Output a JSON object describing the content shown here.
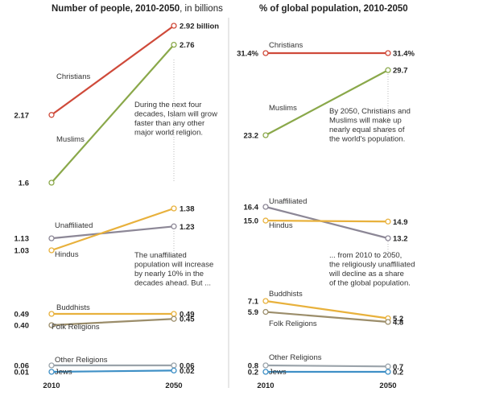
{
  "colors": {
    "Christians": "#cf4a3a",
    "Muslims": "#8aa84a",
    "Unaffiliated": "#8c8796",
    "Hindus": "#e8b13c",
    "Buddhists": "#e8b13c",
    "Folk Religions": "#9b8d6a",
    "Other Religions": "#9aa3aa",
    "Jews": "#3f90c6",
    "divider": "#cfcfcf",
    "axis": "#333333",
    "gridlink": "#bbbbbb"
  },
  "chart_data": [
    {
      "type": "line",
      "title_bold": "Number of people, 2010-2050",
      "title_rest": ", in billions",
      "x": [
        2010,
        2050
      ],
      "x_tick_labels": [
        "2010",
        "2050"
      ],
      "groups": [
        {
          "series": [
            {
              "name": "Christians",
              "values": [
                2.17,
                2.92
              ],
              "start_label": "2.17",
              "end_label": "2.92 billion"
            },
            {
              "name": "Muslims",
              "values": [
                1.6,
                2.76
              ],
              "start_label": "1.6",
              "end_label": "2.76"
            }
          ],
          "annotation": [
            "During the next four",
            "decades, Islam will grow",
            "faster than any other",
            "major world religion."
          ]
        },
        {
          "series": [
            {
              "name": "Unaffiliated",
              "values": [
                1.13,
                1.23
              ],
              "start_label": "1.13",
              "end_label": "1.23"
            },
            {
              "name": "Hindus",
              "values": [
                1.03,
                1.38
              ],
              "start_label": "1.03",
              "end_label": "1.38"
            }
          ],
          "annotation": [
            "The unaffiliated",
            "population will increase",
            "by nearly 10% in the",
            "decades ahead. But ..."
          ]
        },
        {
          "series": [
            {
              "name": "Buddhists",
              "values": [
                0.49,
                0.49
              ],
              "start_label": "0.49",
              "end_label": "0.49"
            },
            {
              "name": "Folk Religions",
              "values": [
                0.4,
                0.45
              ],
              "start_label": "0.40",
              "end_label": "0.45"
            }
          ]
        },
        {
          "series": [
            {
              "name": "Other Religions",
              "values": [
                0.06,
                0.06
              ],
              "start_label": "0.06",
              "end_label": "0.06"
            },
            {
              "name": "Jews",
              "values": [
                0.01,
                0.02
              ],
              "start_label": "0.01",
              "end_label": "0.02"
            }
          ]
        }
      ]
    },
    {
      "type": "line",
      "title_bold": "% of global population, 2010-2050",
      "title_rest": "",
      "x": [
        2010,
        2050
      ],
      "x_tick_labels": [
        "2010",
        "2050"
      ],
      "groups": [
        {
          "series": [
            {
              "name": "Christians",
              "values": [
                31.4,
                31.4
              ],
              "start_label": "31.4%",
              "end_label": "31.4%"
            },
            {
              "name": "Muslims",
              "values": [
                23.2,
                29.7
              ],
              "start_label": "23.2",
              "end_label": "29.7"
            }
          ],
          "annotation": [
            "By 2050, Christians and",
            "Muslims will make up",
            "nearly equal shares of",
            "the world's population."
          ]
        },
        {
          "series": [
            {
              "name": "Unaffiliated",
              "values": [
                16.4,
                13.2
              ],
              "start_label": "16.4",
              "end_label": "13.2"
            },
            {
              "name": "Hindus",
              "values": [
                15.0,
                14.9
              ],
              "start_label": "15.0",
              "end_label": "14.9"
            }
          ],
          "annotation": [
            "... from 2010 to 2050,",
            "the religiously unaffiliated",
            "will decline as a share",
            "of the global population."
          ]
        },
        {
          "series": [
            {
              "name": "Buddhists",
              "values": [
                7.1,
                5.2
              ],
              "start_label": "7.1",
              "end_label": "5.2"
            },
            {
              "name": "Folk Religions",
              "values": [
                5.9,
                4.8
              ],
              "start_label": "5.9",
              "end_label": "4.8"
            }
          ]
        },
        {
          "series": [
            {
              "name": "Other Religions",
              "values": [
                0.8,
                0.7
              ],
              "start_label": "0.8",
              "end_label": "0.7"
            },
            {
              "name": "Jews",
              "values": [
                0.2,
                0.2
              ],
              "start_label": "0.2",
              "end_label": "0.2"
            }
          ]
        }
      ]
    }
  ]
}
